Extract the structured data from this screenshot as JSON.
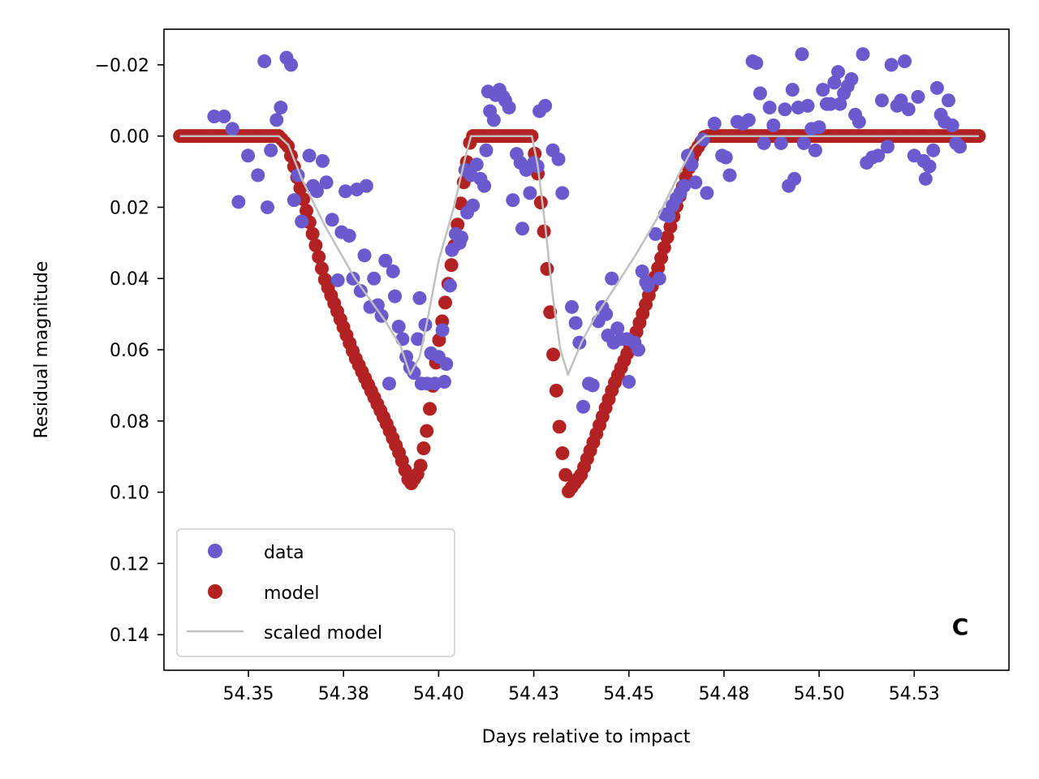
{
  "chart_data": {
    "type": "scatter",
    "title": "",
    "xlabel": "Days relative to impact",
    "ylabel": "Residual magnitude",
    "xlim": [
      54.3278,
      54.5499
    ],
    "ylim": [
      0.15,
      -0.03
    ],
    "y_inverted": true,
    "grid": false,
    "legend_position": "lower-left",
    "annotation": "C",
    "xticks": [
      {
        "value": 54.35,
        "label": "54.35"
      },
      {
        "value": 54.375,
        "label": "54.38"
      },
      {
        "value": 54.4,
        "label": "54.40"
      },
      {
        "value": 54.425,
        "label": "54.43"
      },
      {
        "value": 54.45,
        "label": "54.45"
      },
      {
        "value": 54.475,
        "label": "54.48"
      },
      {
        "value": 54.5,
        "label": "54.50"
      },
      {
        "value": 54.525,
        "label": "54.53"
      }
    ],
    "yticks": [
      {
        "value": -0.02,
        "label": "−0.02"
      },
      {
        "value": 0.0,
        "label": "0.00"
      },
      {
        "value": 0.02,
        "label": "0.02"
      },
      {
        "value": 0.04,
        "label": "0.04"
      },
      {
        "value": 0.06,
        "label": "0.06"
      },
      {
        "value": 0.08,
        "label": "0.08"
      },
      {
        "value": 0.1,
        "label": "0.10"
      },
      {
        "value": 0.12,
        "label": "0.12"
      },
      {
        "value": 0.14,
        "label": "0.14"
      }
    ],
    "series": [
      {
        "name": "data",
        "kind": "markers",
        "color": "#6a5acd",
        "points": [
          [
            54.341,
            -0.0055
          ],
          [
            54.3436,
            -0.0055
          ],
          [
            54.3458,
            -0.002
          ],
          [
            54.3474,
            0.0185
          ],
          [
            54.3499,
            0.0055
          ],
          [
            54.3525,
            0.011
          ],
          [
            54.3542,
            -0.021
          ],
          [
            54.355,
            0.02
          ],
          [
            54.3559,
            0.004
          ],
          [
            54.3574,
            -0.0045
          ],
          [
            54.3585,
            -0.008
          ],
          [
            54.36,
            -0.022
          ],
          [
            54.3612,
            -0.02
          ],
          [
            54.362,
            0.018
          ],
          [
            54.363,
            0.011
          ],
          [
            54.364,
            0.024
          ],
          [
            54.366,
            0.0055
          ],
          [
            54.367,
            0.014
          ],
          [
            54.368,
            0.0155
          ],
          [
            54.3695,
            0.007
          ],
          [
            54.3705,
            0.013
          ],
          [
            54.372,
            0.0235
          ],
          [
            54.3735,
            0.0405
          ],
          [
            54.3745,
            0.027
          ],
          [
            54.3755,
            0.0155
          ],
          [
            54.3765,
            0.028
          ],
          [
            54.3775,
            0.04
          ],
          [
            54.3785,
            0.015
          ],
          [
            54.3795,
            0.0435
          ],
          [
            54.3805,
            0.0335
          ],
          [
            54.381,
            0.014
          ],
          [
            54.382,
            0.048
          ],
          [
            54.383,
            0.04
          ],
          [
            54.384,
            0.0475
          ],
          [
            54.385,
            0.0505
          ],
          [
            54.386,
            0.035
          ],
          [
            54.387,
            0.0695
          ],
          [
            54.388,
            0.038
          ],
          [
            54.3885,
            0.045
          ],
          [
            54.3895,
            0.0535
          ],
          [
            54.3905,
            0.057
          ],
          [
            54.3915,
            0.062
          ],
          [
            54.3925,
            0.065
          ],
          [
            54.3935,
            0.0665
          ],
          [
            54.3945,
            0.057
          ],
          [
            54.395,
            0.0455
          ],
          [
            54.3955,
            0.0695
          ],
          [
            54.3965,
            0.053
          ],
          [
            54.397,
            0.0695
          ],
          [
            54.398,
            0.061
          ],
          [
            54.399,
            0.0695
          ],
          [
            54.4,
            0.062
          ],
          [
            54.401,
            0.0545
          ],
          [
            54.4015,
            0.069
          ],
          [
            54.402,
            0.064
          ],
          [
            54.403,
            0.042
          ],
          [
            54.4035,
            0.032
          ],
          [
            54.4045,
            0.0275
          ],
          [
            54.4055,
            0.03
          ],
          [
            54.406,
            0.0285
          ],
          [
            54.407,
            0.0095
          ],
          [
            54.4075,
            0.0215
          ],
          [
            54.4085,
            0.011
          ],
          [
            54.409,
            0.0195
          ],
          [
            54.41,
            0.008
          ],
          [
            54.411,
            0.012
          ],
          [
            54.412,
            0.014
          ],
          [
            54.4125,
            0.004
          ],
          [
            54.413,
            -0.0125
          ],
          [
            54.4135,
            -0.007
          ],
          [
            54.4145,
            -0.0045
          ],
          [
            54.415,
            -0.0115
          ],
          [
            54.416,
            -0.013
          ],
          [
            54.417,
            -0.011
          ],
          [
            54.4175,
            -0.01
          ],
          [
            54.4185,
            -0.008
          ],
          [
            54.4195,
            0.018
          ],
          [
            54.4205,
            0.005
          ],
          [
            54.4215,
            0.0075
          ],
          [
            54.422,
            0.026
          ],
          [
            54.423,
            0.0095
          ],
          [
            54.424,
            0.016
          ],
          [
            54.425,
            0.0075
          ],
          [
            54.426,
            0.0085
          ],
          [
            54.4265,
            -0.007
          ],
          [
            54.428,
            -0.0085
          ],
          [
            54.43,
            0.004
          ],
          [
            54.4315,
            0.0065
          ],
          [
            54.4325,
            0.016
          ],
          [
            54.435,
            0.048
          ],
          [
            54.436,
            0.0525
          ],
          [
            54.437,
            0.058
          ],
          [
            54.438,
            0.076
          ],
          [
            54.4395,
            0.0695
          ],
          [
            54.4405,
            0.07
          ],
          [
            54.442,
            0.052
          ],
          [
            54.443,
            0.048
          ],
          [
            54.444,
            0.05
          ],
          [
            54.4445,
            0.056
          ],
          [
            54.4455,
            0.04
          ],
          [
            54.446,
            0.058
          ],
          [
            54.447,
            0.054
          ],
          [
            54.448,
            0.057
          ],
          [
            54.4495,
            0.057
          ],
          [
            54.45,
            0.069
          ],
          [
            54.4515,
            0.058
          ],
          [
            54.4525,
            0.06
          ],
          [
            54.4535,
            0.038
          ],
          [
            54.4545,
            0.041
          ],
          [
            54.455,
            0.042
          ],
          [
            54.457,
            0.0275
          ],
          [
            54.458,
            0.04
          ],
          [
            54.4595,
            0.022
          ],
          [
            54.4605,
            0.0225
          ],
          [
            54.4615,
            0.0195
          ],
          [
            54.4625,
            0.0175
          ],
          [
            54.4635,
            0.016
          ],
          [
            54.4645,
            0.014
          ],
          [
            54.4655,
            0.0055
          ],
          [
            54.4665,
            0.008
          ],
          [
            54.4675,
            0.013
          ],
          [
            54.4695,
            0.001
          ],
          [
            54.4705,
            0.016
          ],
          [
            54.4725,
            -0.0035
          ],
          [
            54.4745,
            0.0055
          ],
          [
            54.4755,
            0.006
          ],
          [
            54.4765,
            0.011
          ],
          [
            54.4785,
            -0.004
          ],
          [
            54.48,
            -0.0035
          ],
          [
            54.4815,
            -0.0045
          ],
          [
            54.4825,
            -0.021
          ],
          [
            54.4835,
            -0.0205
          ],
          [
            54.4845,
            -0.012
          ],
          [
            54.4855,
            0.002
          ],
          [
            54.487,
            -0.008
          ],
          [
            54.488,
            -0.003
          ],
          [
            54.49,
            0.002
          ],
          [
            54.491,
            -0.0075
          ],
          [
            54.492,
            0.014
          ],
          [
            54.493,
            -0.013
          ],
          [
            54.4935,
            0.012
          ],
          [
            54.4945,
            -0.008
          ],
          [
            54.4955,
            -0.023
          ],
          [
            54.496,
            0.002
          ],
          [
            54.497,
            -0.0085
          ],
          [
            54.498,
            -0.002
          ],
          [
            54.499,
            0.004
          ],
          [
            54.5,
            -0.0025
          ],
          [
            54.501,
            -0.013
          ],
          [
            54.502,
            -0.009
          ],
          [
            54.503,
            -0.009
          ],
          [
            54.504,
            -0.015
          ],
          [
            54.505,
            -0.018
          ],
          [
            54.5055,
            -0.009
          ],
          [
            54.5065,
            -0.012
          ],
          [
            54.5075,
            -0.014
          ],
          [
            54.5085,
            -0.016
          ],
          [
            54.5095,
            -0.006
          ],
          [
            54.5105,
            -0.004
          ],
          [
            54.5115,
            -0.023
          ],
          [
            54.5125,
            0.0075
          ],
          [
            54.514,
            0.006
          ],
          [
            54.5155,
            0.0055
          ],
          [
            54.5165,
            -0.01
          ],
          [
            54.518,
            0.003
          ],
          [
            54.519,
            -0.02
          ],
          [
            54.5205,
            -0.0085
          ],
          [
            54.5215,
            -0.01
          ],
          [
            54.5225,
            -0.021
          ],
          [
            54.5235,
            -0.0075
          ],
          [
            54.525,
            0.0055
          ],
          [
            54.526,
            -0.011
          ],
          [
            54.5275,
            0.007
          ],
          [
            54.528,
            0.012
          ],
          [
            54.529,
            0.0085
          ],
          [
            54.53,
            0.004
          ],
          [
            54.531,
            -0.0135
          ],
          [
            54.532,
            -0.006
          ],
          [
            54.533,
            -0.004
          ],
          [
            54.534,
            -0.01
          ],
          [
            54.535,
            -0.003
          ],
          [
            54.536,
            0.002
          ],
          [
            54.537,
            0.003
          ]
        ]
      },
      {
        "name": "model",
        "kind": "markers",
        "color": "#b22222",
        "shape": "piecewise",
        "nodes": [
          [
            54.332,
            0.0
          ],
          [
            54.358,
            0.0
          ],
          [
            54.3605,
            0.003
          ],
          [
            54.364,
            0.016
          ],
          [
            54.37,
            0.04
          ],
          [
            54.378,
            0.062
          ],
          [
            54.386,
            0.08
          ],
          [
            54.39,
            0.09
          ],
          [
            54.3925,
            0.098
          ],
          [
            54.395,
            0.094
          ],
          [
            54.397,
            0.082
          ],
          [
            54.4,
            0.058
          ],
          [
            54.404,
            0.032
          ],
          [
            54.407,
            0.01
          ],
          [
            54.4085,
            0.0
          ],
          [
            54.4245,
            0.0
          ],
          [
            54.426,
            0.01
          ],
          [
            54.428,
            0.03
          ],
          [
            54.43,
            0.06
          ],
          [
            54.432,
            0.085
          ],
          [
            54.434,
            0.1
          ],
          [
            54.4375,
            0.095
          ],
          [
            54.441,
            0.085
          ],
          [
            54.446,
            0.07
          ],
          [
            54.452,
            0.055
          ],
          [
            54.458,
            0.036
          ],
          [
            54.463,
            0.018
          ],
          [
            54.467,
            0.005
          ],
          [
            54.47,
            0.0
          ],
          [
            54.542,
            0.0
          ]
        ],
        "n_points": 260
      },
      {
        "name": "scaled model",
        "kind": "line",
        "color": "#c0c0c0",
        "points": [
          [
            54.332,
            0.0
          ],
          [
            54.358,
            0.0
          ],
          [
            54.3605,
            0.0025
          ],
          [
            54.364,
            0.012
          ],
          [
            54.37,
            0.025
          ],
          [
            54.378,
            0.04
          ],
          [
            54.386,
            0.052
          ],
          [
            54.39,
            0.059
          ],
          [
            54.3925,
            0.067
          ],
          [
            54.395,
            0.062
          ],
          [
            54.397,
            0.052
          ],
          [
            54.4,
            0.035
          ],
          [
            54.404,
            0.02
          ],
          [
            54.407,
            0.006
          ],
          [
            54.4085,
            0.0
          ],
          [
            54.4245,
            0.0
          ],
          [
            54.426,
            0.008
          ],
          [
            54.428,
            0.025
          ],
          [
            54.43,
            0.045
          ],
          [
            54.432,
            0.06
          ],
          [
            54.434,
            0.067
          ],
          [
            54.4375,
            0.058
          ],
          [
            54.441,
            0.051
          ],
          [
            54.446,
            0.043
          ],
          [
            54.452,
            0.033
          ],
          [
            54.458,
            0.022
          ],
          [
            54.463,
            0.011
          ],
          [
            54.467,
            0.003
          ],
          [
            54.47,
            0.0
          ],
          [
            54.542,
            0.0
          ]
        ]
      }
    ]
  },
  "legend": {
    "items": [
      {
        "label": "data",
        "color": "#6a5acd"
      },
      {
        "label": "model",
        "color": "#b22222"
      },
      {
        "label": "scaled model",
        "color": "#c0c0c0"
      }
    ]
  }
}
